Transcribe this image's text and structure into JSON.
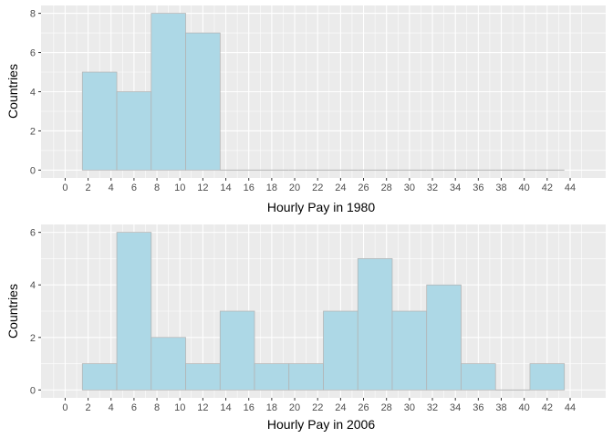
{
  "chart_data": [
    {
      "type": "bar",
      "subtype": "histogram",
      "xlabel": "Hourly Pay in 1980",
      "ylabel": "Countries",
      "bin_edges": [
        1.5,
        4.5,
        7.5,
        10.5,
        13.5,
        16.5,
        19.5,
        22.5,
        25.5,
        28.5,
        31.5,
        34.5,
        37.5,
        40.5,
        43.5
      ],
      "values": [
        5,
        4,
        8,
        7,
        0,
        0,
        0,
        0,
        0,
        0,
        0,
        0,
        0,
        0
      ],
      "xlim": [
        -2.1,
        47.1
      ],
      "ylim": [
        -0.4,
        8.4
      ],
      "x_ticks": [
        0,
        2,
        4,
        6,
        8,
        10,
        12,
        14,
        16,
        18,
        20,
        22,
        24,
        26,
        28,
        30,
        32,
        34,
        36,
        38,
        40,
        42,
        44
      ],
      "y_ticks": [
        0,
        2,
        4,
        6,
        8
      ],
      "fill_color": "#add8e6",
      "border_color": "#b3b3b3",
      "panel_color": "#ebebeb",
      "grid": true
    },
    {
      "type": "bar",
      "subtype": "histogram",
      "xlabel": "Hourly Pay in 2006",
      "ylabel": "Countries",
      "bin_edges": [
        1.5,
        4.5,
        7.5,
        10.5,
        13.5,
        16.5,
        19.5,
        22.5,
        25.5,
        28.5,
        31.5,
        34.5,
        37.5,
        40.5,
        43.5
      ],
      "values": [
        1,
        6,
        2,
        1,
        3,
        1,
        1,
        3,
        5,
        3,
        4,
        1,
        0,
        1
      ],
      "xlim": [
        -2.1,
        47.1
      ],
      "ylim": [
        -0.3,
        6.3
      ],
      "x_ticks": [
        0,
        2,
        4,
        6,
        8,
        10,
        12,
        14,
        16,
        18,
        20,
        22,
        24,
        26,
        28,
        30,
        32,
        34,
        36,
        38,
        40,
        42,
        44
      ],
      "y_ticks": [
        0,
        2,
        4,
        6
      ],
      "fill_color": "#add8e6",
      "border_color": "#b3b3b3",
      "panel_color": "#ebebeb",
      "grid": true
    }
  ]
}
